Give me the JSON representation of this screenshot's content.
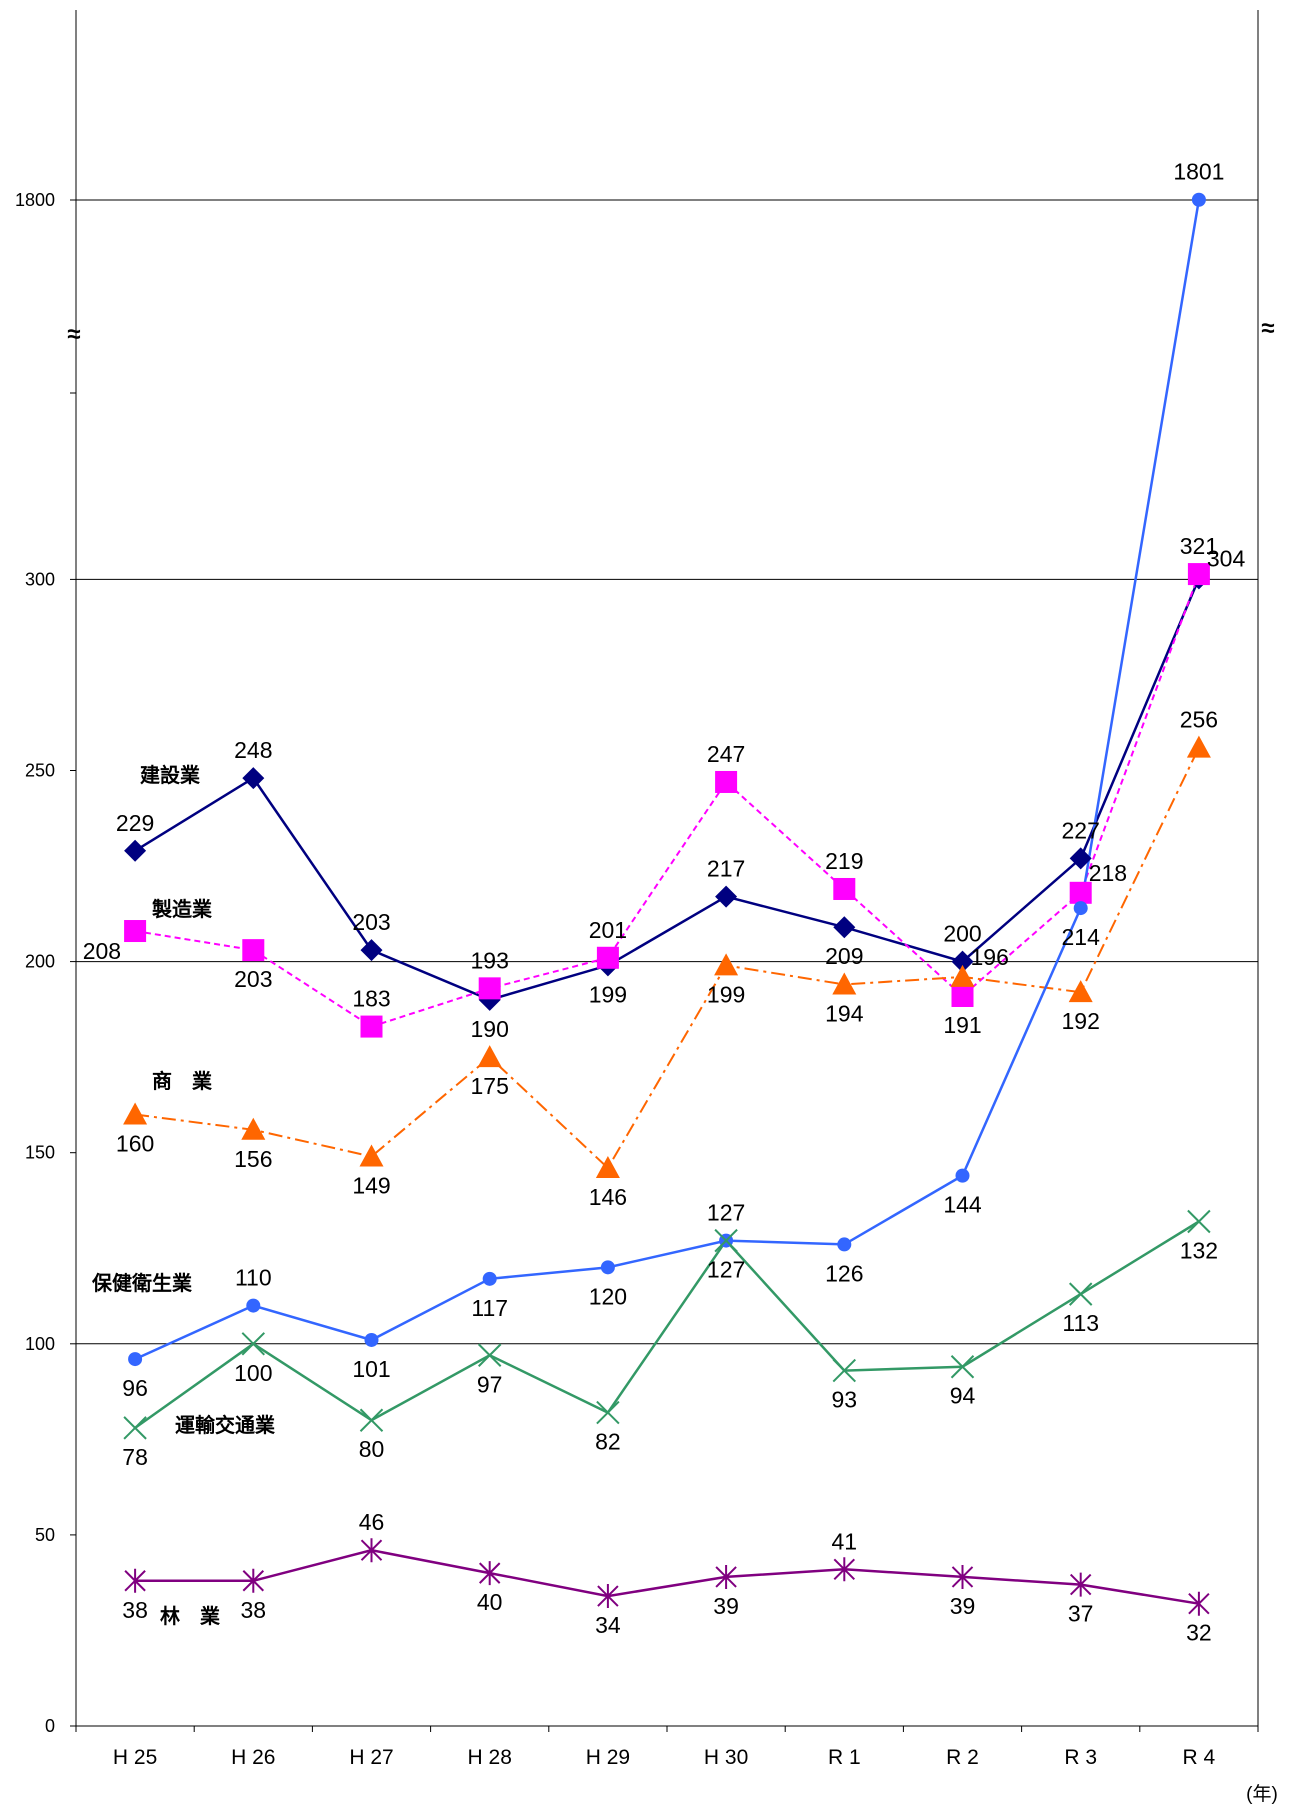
{
  "chart_data": {
    "type": "line",
    "categories": [
      "H 25",
      "H 26",
      "H 27",
      "H 28",
      "H 29",
      "H 30",
      "R 1",
      "R 2",
      "R 3",
      "R 4"
    ],
    "x_unit": "(年)",
    "y_ticks": [
      "0",
      "50",
      "100",
      "150",
      "200",
      "250",
      "300",
      "1800"
    ],
    "axis_break_mark": "≈",
    "ylim": [
      0,
      1800
    ],
    "y_axis_break": [
      300,
      1800
    ],
    "grid": "horizontal lines at 100, 200, 300, 1800",
    "legend": "series names placed next to their lines on the left",
    "series": [
      {
        "name": "建設業",
        "color": "#000080",
        "marker": "diamond",
        "line": "solid",
        "values": [
          229,
          248,
          203,
          190,
          199,
          217,
          209,
          200,
          227,
          304
        ],
        "labels": [
          "229",
          "248",
          "203",
          "190",
          "199",
          "217",
          "209",
          "200",
          "227",
          "304"
        ]
      },
      {
        "name": "製造業",
        "color": "#FF00FF",
        "marker": "square",
        "line": "dashed",
        "values": [
          208,
          203,
          183,
          193,
          201,
          247,
          219,
          191,
          218,
          321
        ],
        "labels": [
          "208",
          "203",
          "183",
          "193",
          "201",
          "247",
          "219",
          "191",
          "218",
          "321"
        ]
      },
      {
        "name": "商　業",
        "color": "#FF6600",
        "marker": "triangle",
        "line": "dash-dot",
        "values": [
          160,
          156,
          149,
          175,
          146,
          199,
          194,
          196,
          192,
          256
        ],
        "labels": [
          "160",
          "156",
          "149",
          "175",
          "146",
          "199",
          "194",
          "196",
          "192",
          "256"
        ]
      },
      {
        "name": "保健衛生業",
        "color": "#3366FF",
        "marker": "circle",
        "line": "solid",
        "values": [
          96,
          110,
          101,
          117,
          120,
          127,
          126,
          144,
          214,
          1801
        ],
        "labels": [
          "96",
          "110",
          "101",
          "117",
          "120",
          "127",
          "126",
          "144",
          "214",
          "1801"
        ]
      },
      {
        "name": "運輸交通業",
        "color": "#339966",
        "marker": "x",
        "line": "solid",
        "values": [
          78,
          100,
          80,
          97,
          82,
          127,
          93,
          94,
          113,
          132
        ],
        "labels": [
          "78",
          "100",
          "80",
          "97",
          "82",
          "127",
          "93",
          "94",
          "113",
          "132"
        ]
      },
      {
        "name": "林　業",
        "color": "#800080",
        "marker": "asterisk",
        "line": "solid",
        "values": [
          38,
          38,
          46,
          40,
          34,
          39,
          41,
          39,
          37,
          32
        ],
        "labels": [
          "38",
          "38",
          "46",
          "40",
          "34",
          "39",
          "41",
          "39",
          "37",
          "32"
        ]
      }
    ]
  }
}
